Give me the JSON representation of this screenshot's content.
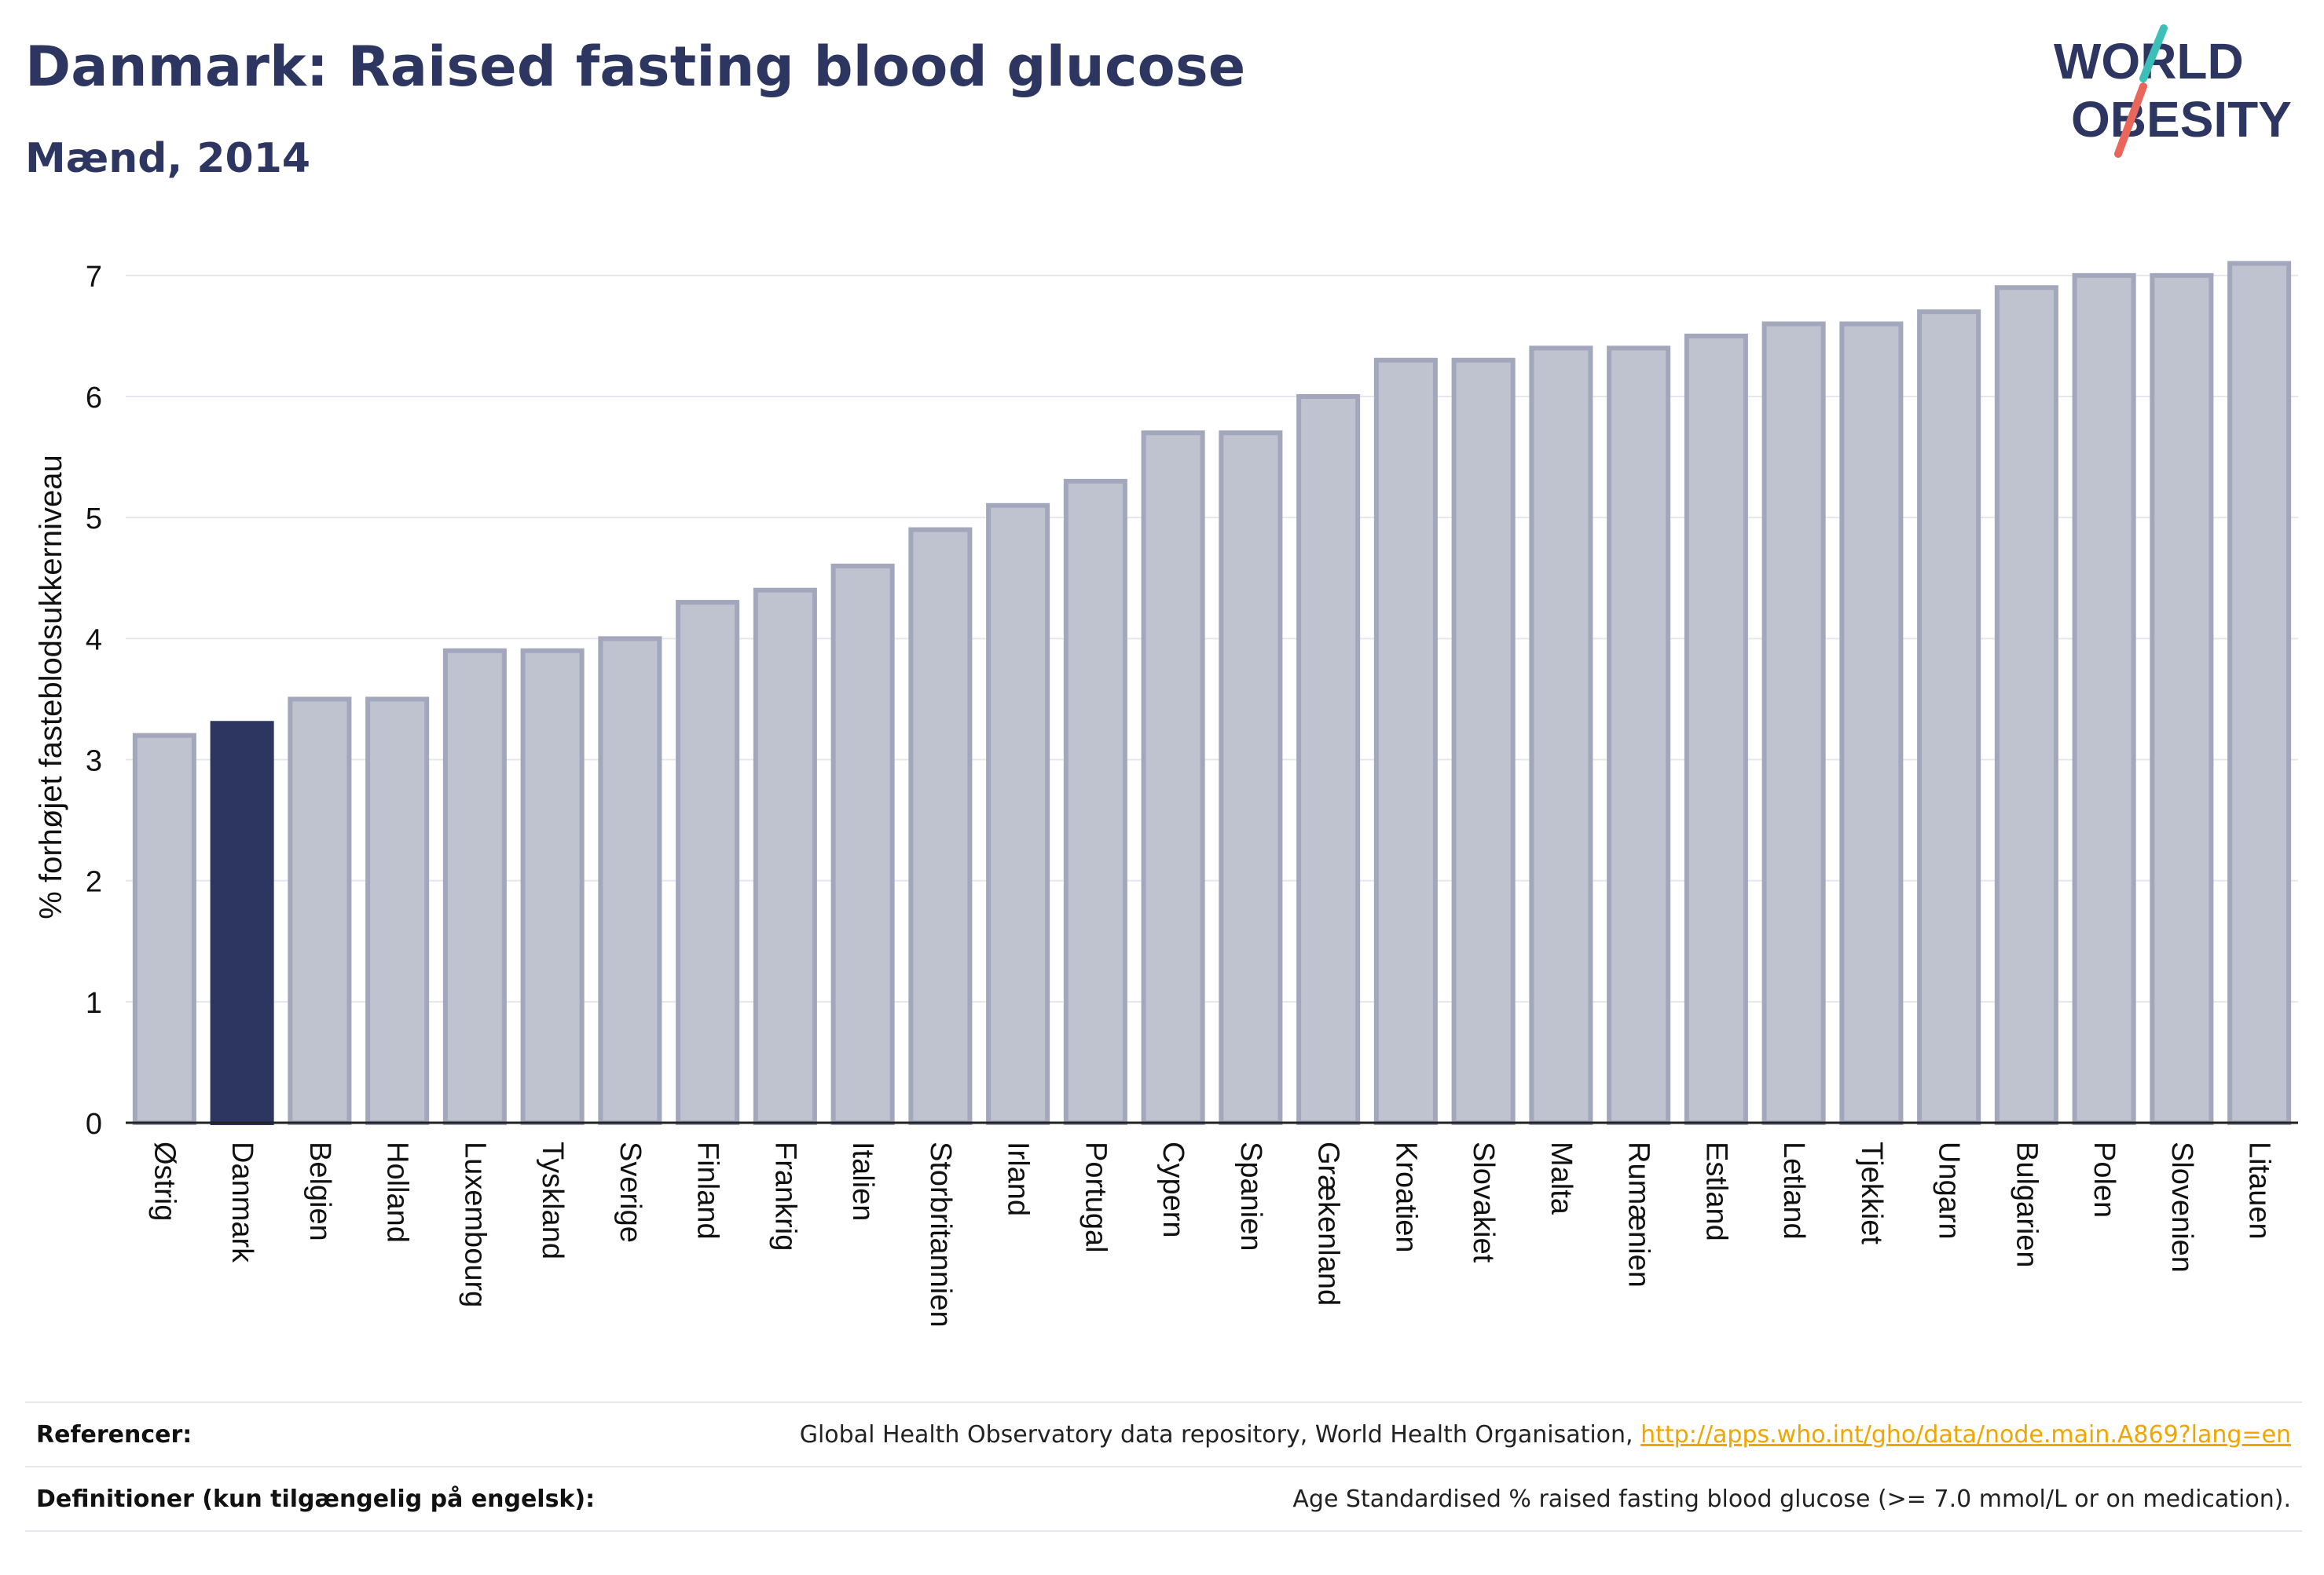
{
  "header": {
    "title": "Danmark: Raised fasting blood glucose",
    "subtitle": "Mænd, 2014"
  },
  "logo": {
    "line1": "WORLD",
    "line2": "OBESITY"
  },
  "colors": {
    "highlight": "#2d3561",
    "bar_fill": "#bfc2cf",
    "bar_stroke": "#a2a7bc",
    "logo_teal": "#3bbfb8",
    "logo_coral": "#e8675a",
    "link": "#f0a500"
  },
  "chart_data": {
    "type": "bar",
    "title": "Danmark: Raised fasting blood glucose",
    "subtitle": "Mænd, 2014",
    "xlabel": "",
    "ylabel": "% forhøjet fasteblodsukkerniveau",
    "ylim": [
      0,
      7.2
    ],
    "yticks": [
      0,
      1,
      2,
      3,
      4,
      5,
      6,
      7
    ],
    "grid": true,
    "highlight_category": "Danmark",
    "categories": [
      "Østrig",
      "Danmark",
      "Belgien",
      "Holland",
      "Luxembourg",
      "Tyskland",
      "Sverige",
      "Finland",
      "Frankrig",
      "Italien",
      "Storbritannien",
      "Irland",
      "Portugal",
      "Cypern",
      "Spanien",
      "Grækenland",
      "Kroatien",
      "Slovakiet",
      "Malta",
      "Rumænien",
      "Estland",
      "Letland",
      "Tjekkiet",
      "Ungarn",
      "Bulgarien",
      "Polen",
      "Slovenien",
      "Litauen"
    ],
    "values": [
      3.2,
      3.3,
      3.5,
      3.5,
      3.9,
      3.9,
      4.0,
      4.3,
      4.4,
      4.6,
      4.9,
      5.1,
      5.3,
      5.7,
      5.7,
      6.0,
      6.3,
      6.3,
      6.4,
      6.4,
      6.5,
      6.6,
      6.6,
      6.7,
      6.9,
      7.0,
      7.0,
      7.1
    ]
  },
  "references": {
    "label": "Referencer:",
    "text": "Global Health Observatory data repository, World Health Organisation,",
    "link": "http://apps.who.int/gho/data/node.main.A869?lang=en"
  },
  "definitions": {
    "label": "Definitioner (kun tilgængelig på engelsk):",
    "text": "Age Standardised % raised fasting blood glucose (>= 7.0 mmol/L or on medication)."
  }
}
